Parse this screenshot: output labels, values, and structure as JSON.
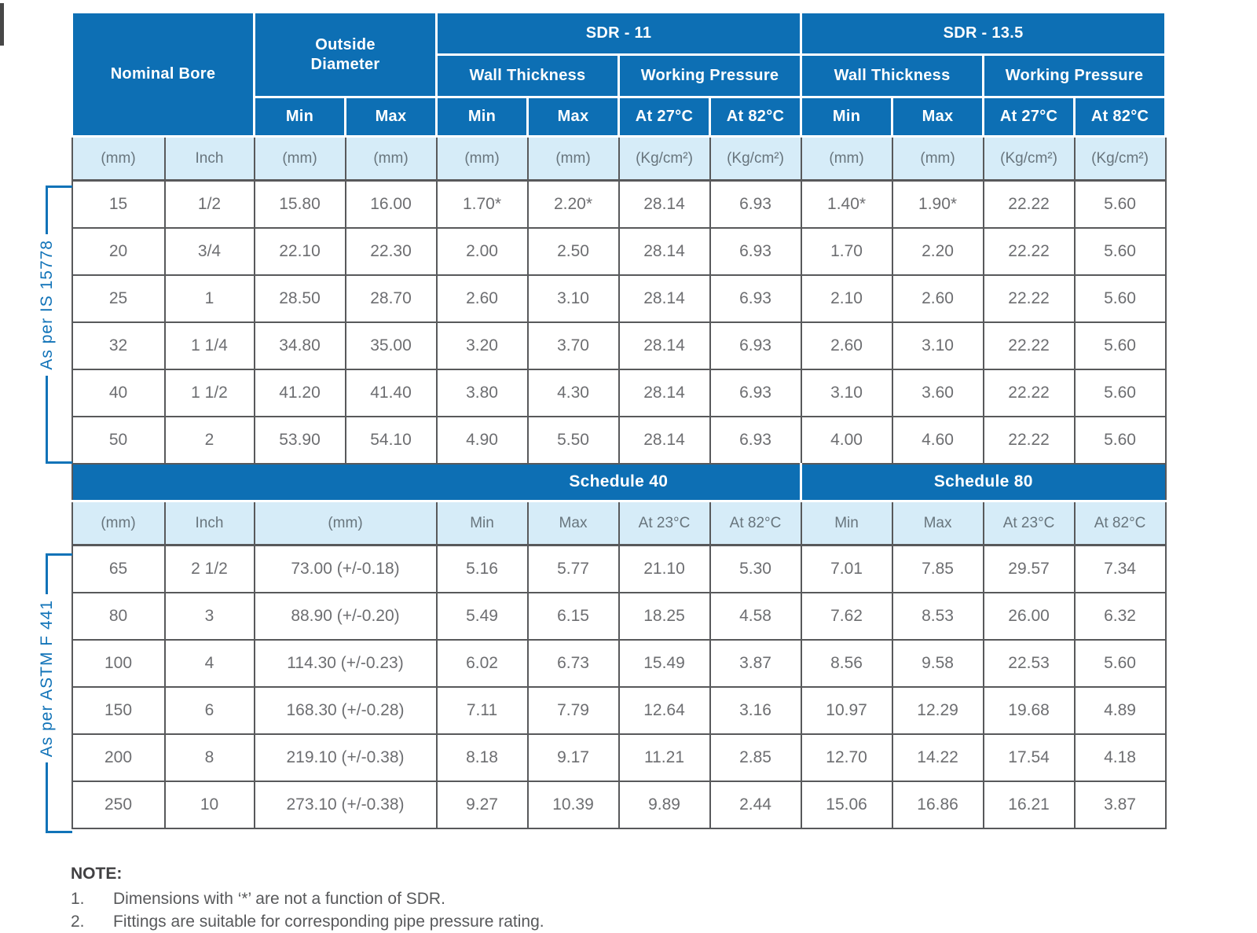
{
  "colors": {
    "header_blue": "#0d6fb4",
    "light_blue": "#d6ecf8",
    "border_gray": "#58595b",
    "data_text_gray": "#6d6e71",
    "label_blue": "#1173b8"
  },
  "side_labels": {
    "is_standard": "As per IS 15778",
    "astm_standard": "As per ASTM F 441"
  },
  "table": {
    "header": {
      "nominal_bore": "Nominal Bore",
      "outside_diameter": "Outside Diameter",
      "sdr11": "SDR - 11",
      "sdr135": "SDR - 13.5",
      "wall_thickness": "Wall Thickness",
      "working_pressure": "Working Pressure",
      "schedule40": "Schedule 40",
      "schedule80": "Schedule 80"
    },
    "header_row3": [
      "Min",
      "Max",
      "Min",
      "Max",
      "At 27°C",
      "At 82°C",
      "Min",
      "Max",
      "At 27°C",
      "At 82°C"
    ],
    "units_top": [
      "(mm)",
      "Inch",
      "(mm)",
      "(mm)",
      "(mm)",
      "(mm)",
      "(Kg/cm²)",
      "(Kg/cm²)",
      "(mm)",
      "(mm)",
      "(Kg/cm²)",
      "(Kg/cm²)"
    ],
    "rows_top": [
      [
        "15",
        "1/2",
        "15.80",
        "16.00",
        "1.70*",
        "2.20*",
        "28.14",
        "6.93",
        "1.40*",
        "1.90*",
        "22.22",
        "5.60"
      ],
      [
        "20",
        "3/4",
        "22.10",
        "22.30",
        "2.00",
        "2.50",
        "28.14",
        "6.93",
        "1.70",
        "2.20",
        "22.22",
        "5.60"
      ],
      [
        "25",
        "1",
        "28.50",
        "28.70",
        "2.60",
        "3.10",
        "28.14",
        "6.93",
        "2.10",
        "2.60",
        "22.22",
        "5.60"
      ],
      [
        "32",
        "1 1/4",
        "34.80",
        "35.00",
        "3.20",
        "3.70",
        "28.14",
        "6.93",
        "2.60",
        "3.10",
        "22.22",
        "5.60"
      ],
      [
        "40",
        "1 1/2",
        "41.20",
        "41.40",
        "3.80",
        "4.30",
        "28.14",
        "6.93",
        "3.10",
        "3.60",
        "22.22",
        "5.60"
      ],
      [
        "50",
        "2",
        "53.90",
        "54.10",
        "4.90",
        "5.50",
        "28.14",
        "6.93",
        "4.00",
        "4.60",
        "22.22",
        "5.60"
      ]
    ],
    "units_bottom": [
      "(mm)",
      "Inch",
      {
        "text": "(mm)",
        "colspan": 2
      },
      "Min",
      "Max",
      "At 23°C",
      "At 82°C",
      "Min",
      "Max",
      "At 23°C",
      "At 82°C"
    ],
    "rows_bottom": [
      [
        "65",
        "2 1/2",
        {
          "text": "73.00 (+/-0.18)",
          "colspan": 2
        },
        "5.16",
        "5.77",
        "21.10",
        "5.30",
        "7.01",
        "7.85",
        "29.57",
        "7.34"
      ],
      [
        "80",
        "3",
        {
          "text": "88.90 (+/-0.20)",
          "colspan": 2
        },
        "5.49",
        "6.15",
        "18.25",
        "4.58",
        "7.62",
        "8.53",
        "26.00",
        "6.32"
      ],
      [
        "100",
        "4",
        {
          "text": "114.30 (+/-0.23)",
          "colspan": 2
        },
        "6.02",
        "6.73",
        "15.49",
        "3.87",
        "8.56",
        {
          "text": "9.58",
          "raised": true
        },
        "22.53",
        "5.60"
      ],
      [
        "150",
        "6",
        {
          "text": "168.30 (+/-0.28)",
          "colspan": 2
        },
        "7.11",
        "7.79",
        "12.64",
        "3.16",
        "10.97",
        "12.29",
        "19.68",
        "4.89"
      ],
      [
        "200",
        "8",
        {
          "text": "219.10 (+/-0.38)",
          "colspan": 2
        },
        "8.18",
        "9.17",
        "11.21",
        "2.85",
        "12.70",
        "14.22",
        "17.54",
        "4.18"
      ],
      [
        "250",
        "10",
        {
          "text": "273.10 (+/-0.38)",
          "colspan": 2
        },
        "9.27",
        "10.39",
        "9.89",
        "2.44",
        "15.06",
        "16.86",
        "16.21",
        "3.87"
      ]
    ]
  },
  "note": {
    "title": "NOTE:",
    "items": [
      {
        "num": "1.",
        "text": "Dimensions with ‘*’ are not a function of SDR."
      },
      {
        "num": "2.",
        "text": "Fittings are suitable for corresponding pipe pressure rating."
      }
    ]
  }
}
